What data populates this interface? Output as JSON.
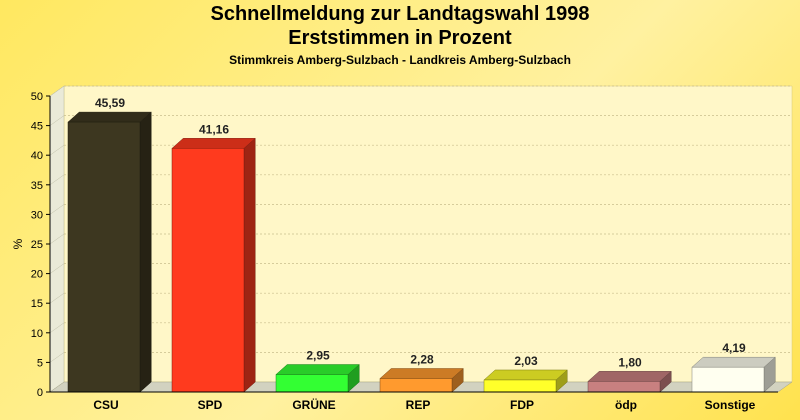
{
  "title": "Schnellmeldung zur Landtagswahl 1998",
  "subtitle": "Erststimmen in Prozent",
  "subtitle2": "Stimmkreis Amberg-Sulzbach - Landkreis Amberg-Sulzbach",
  "chart_data": {
    "type": "bar",
    "title": "Schnellmeldung zur Landtagswahl 1998",
    "subtitle": "Erststimmen in Prozent",
    "xlabel": "",
    "ylabel": "%",
    "ylim": [
      0,
      50
    ],
    "yticks": [
      0,
      5,
      10,
      15,
      20,
      25,
      30,
      35,
      40,
      45,
      50
    ],
    "grid": true,
    "legend": "none",
    "categories": [
      "CSU",
      "SPD",
      "GRÜNE",
      "REP",
      "FDP",
      "ödp",
      "Sonstige"
    ],
    "values": [
      45.59,
      41.16,
      2.95,
      2.28,
      2.03,
      1.8,
      4.19
    ],
    "value_labels": [
      "45,59",
      "41,16",
      "2,95",
      "2,28",
      "2,03",
      "1,80",
      "4,19"
    ],
    "colors": [
      "#3D3720",
      "#FF3A1E",
      "#33FF33",
      "#FF9A2E",
      "#FFFF2A",
      "#C88080",
      "#FFFFF0"
    ]
  }
}
